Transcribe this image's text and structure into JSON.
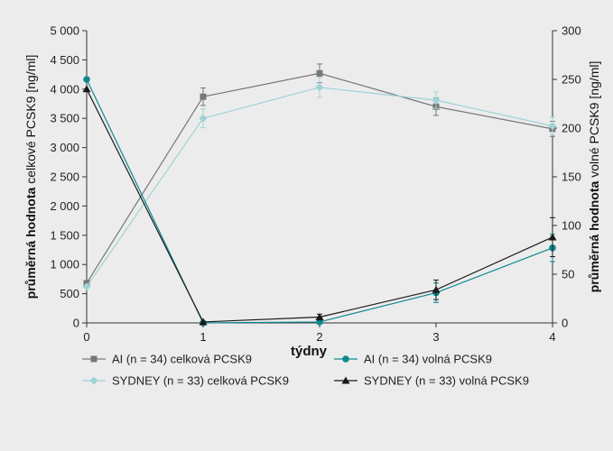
{
  "chart_data": {
    "type": "line",
    "xlabel": "týdny",
    "ylabel_left": {
      "bold": "průměrná hodnota",
      "rest": "celkové PCSK9 [ng/ml]"
    },
    "ylabel_right": {
      "bold": "průměrná hodnota",
      "rest": "volné PCSK9 [ng/ml]"
    },
    "x": [
      0,
      1,
      2,
      3,
      4
    ],
    "xlim": [
      0,
      4
    ],
    "xticks": [
      "0",
      "1",
      "2",
      "3",
      "4"
    ],
    "ylim_left": [
      0,
      5000
    ],
    "yticks_left": [
      "0",
      "500",
      "1 000",
      "1 500",
      "2 000",
      "2 500",
      "3 000",
      "3 500",
      "4 000",
      "4 500",
      "5 000"
    ],
    "ylim_right": [
      0,
      300
    ],
    "yticks_right": [
      "0",
      "50",
      "100",
      "150",
      "200",
      "250",
      "300"
    ],
    "grid": false,
    "legend_position": "bottom",
    "series": [
      {
        "name": "AI (n = 34) celková PCSK9",
        "axis": "left",
        "marker": "square",
        "color": "#777777",
        "values": [
          680,
          3870,
          4270,
          3700,
          3320
        ],
        "err": [
          0,
          150,
          160,
          150,
          130
        ]
      },
      {
        "name": "SYDNEY (n = 33) celková PCSK9",
        "axis": "left",
        "marker": "diamond",
        "color": "#9fd3d6",
        "values": [
          620,
          3500,
          4030,
          3810,
          3370
        ],
        "err": [
          0,
          160,
          170,
          140,
          150
        ]
      },
      {
        "name": "AI (n = 34) volná PCSK9",
        "axis": "right",
        "marker": "circle",
        "color": "#0e8a8e",
        "values": [
          250,
          0,
          1,
          31,
          77
        ],
        "err": [
          0,
          0,
          0,
          10,
          14
        ]
      },
      {
        "name": "SYDNEY (n = 33) volná PCSK9",
        "axis": "right",
        "marker": "triangle",
        "color": "#1a1a1a",
        "values": [
          240,
          1,
          6,
          34,
          88
        ],
        "err": [
          0,
          0,
          3,
          10,
          20
        ]
      }
    ]
  }
}
